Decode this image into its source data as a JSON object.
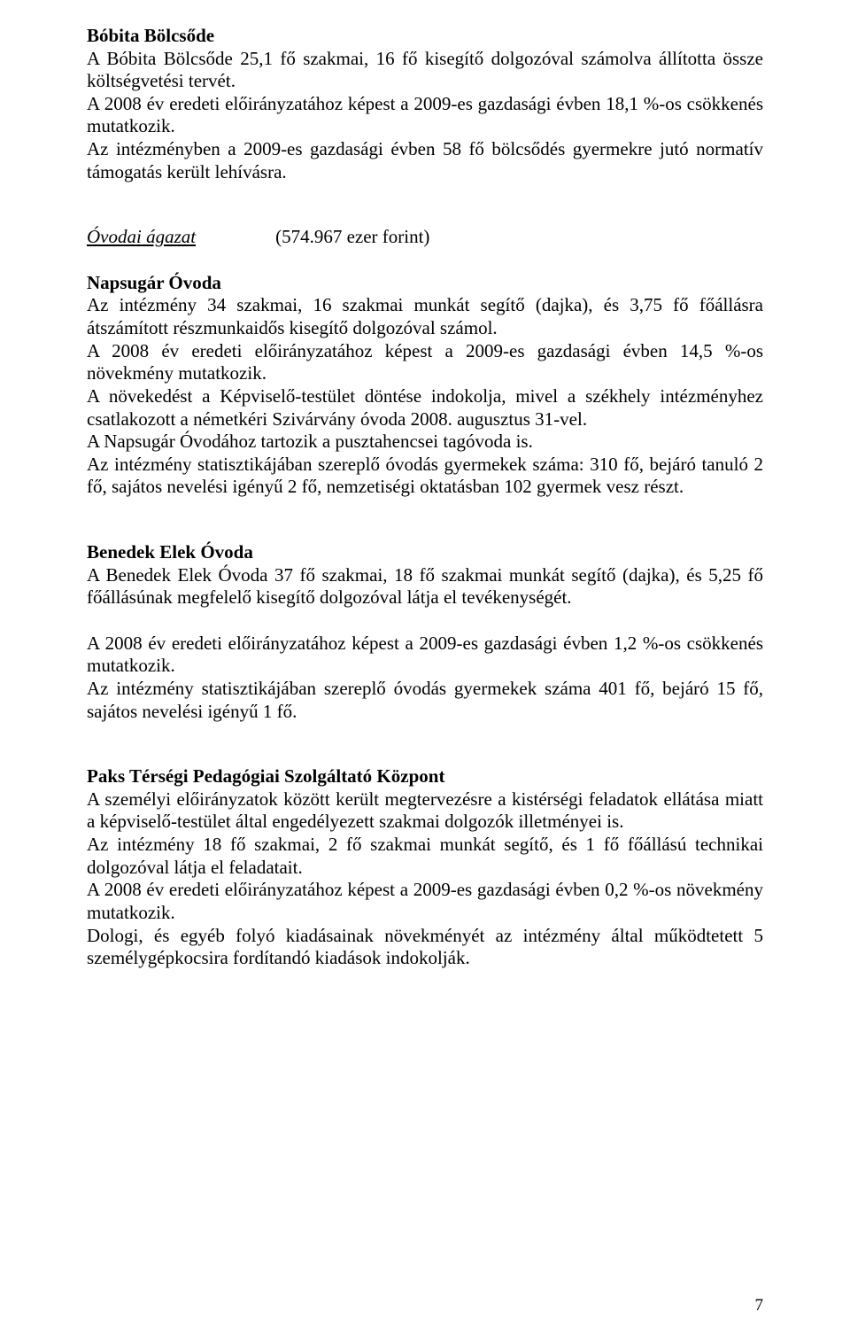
{
  "doc": {
    "bobita": {
      "title": "Bóbita Bölcsőde",
      "p1": "A Bóbita Bölcsőde 25,1 fő szakmai, 16 fő kisegítő dolgozóval számolva állította össze költségvetési tervét.",
      "p2": "A 2008 év eredeti előirányzatához képest a 2009-es gazdasági évben 18,1 %-os csökkenés mutatkozik.",
      "p3": "Az intézményben a 2009-es gazdasági évben 58 fő bölcsődés gyermekre jutó normatív támogatás került lehívásra."
    },
    "ovodai": {
      "label": "Óvodai ágazat",
      "amount": "(574.967 ezer forint)"
    },
    "napsugar": {
      "title": "Napsugár Óvoda",
      "p1": "Az intézmény 34 szakmai, 16 szakmai munkát segítő (dajka), és 3,75 fő főállásra átszámított részmunkaidős kisegítő dolgozóval számol.",
      "p2": "A 2008 év eredeti előirányzatához képest a 2009-es gazdasági évben 14,5 %-os növekmény mutatkozik.",
      "p3": "A növekedést a Képviselő-testület döntése indokolja, mivel a székhely intézményhez csatlakozott a németkéri Szivárvány óvoda 2008. augusztus 31-vel.",
      "p4": "A Napsugár Óvodához tartozik a pusztahencsei  tagóvoda is.",
      "p5": "Az intézmény statisztikájában szereplő óvodás gyermekek száma: 310 fő, bejáró tanuló 2 fő, sajátos nevelési igényű 2 fő, nemzetiségi oktatásban 102 gyermek vesz részt."
    },
    "benedek": {
      "title": "Benedek Elek Óvoda",
      "p1": "A Benedek Elek Óvoda 37 fő szakmai, 18 fő szakmai munkát segítő (dajka),  és 5,25 fő főállásúnak megfelelő kisegítő  dolgozóval látja el tevékenységét.",
      "p2": "A 2008 év eredeti előirányzatához képest a 2009-es gazdasági évben 1,2 %-os csökkenés  mutatkozik.",
      "p3": "Az intézmény statisztikájában szereplő óvodás gyermekek száma 401 fő, bejáró 15 fő, sajátos nevelési igényű 1 fő."
    },
    "paks": {
      "title": "Paks Térségi Pedagógiai Szolgáltató Központ",
      "p1": "A személyi előirányzatok között került megtervezésre a kistérségi feladatok ellátása miatt a képviselő-testület által engedélyezett szakmai dolgozók illetményei is.",
      "p2": "Az intézmény 18 fő szakmai, 2 fő szakmai munkát segítő, és 1 fő főállású technikai dolgozóval látja el feladatait.",
      "p3": "A 2008 év eredeti előirányzatához képest a 2009-es gazdasági évben 0,2 %-os növekmény mutatkozik.",
      "p4": "Dologi, és egyéb folyó kiadásainak növekményét az intézmény által működtetett 5 személygépkocsira fordítandó kiadások indokolják."
    },
    "page_number": "7"
  }
}
